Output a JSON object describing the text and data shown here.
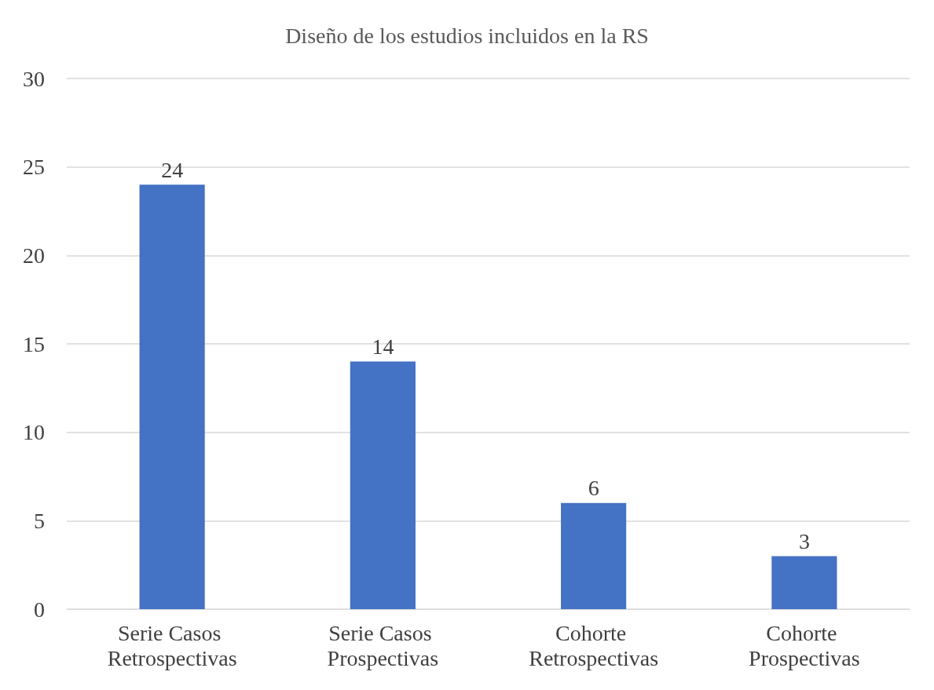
{
  "chart_data": {
    "type": "bar",
    "title": "Diseño de los estudios incluidos en la RS",
    "categories": [
      "Serie Casos Retrospectivas",
      "Serie Casos Prospectivas",
      "Cohorte Retrospectivas",
      "Cohorte Prospectivas"
    ],
    "values": [
      24,
      14,
      6,
      3
    ],
    "color": "#4472c4",
    "ylim": [
      0,
      30
    ],
    "yticks": [
      0,
      5,
      10,
      15,
      20,
      25,
      30
    ],
    "grid": "y",
    "data_labels": true
  }
}
